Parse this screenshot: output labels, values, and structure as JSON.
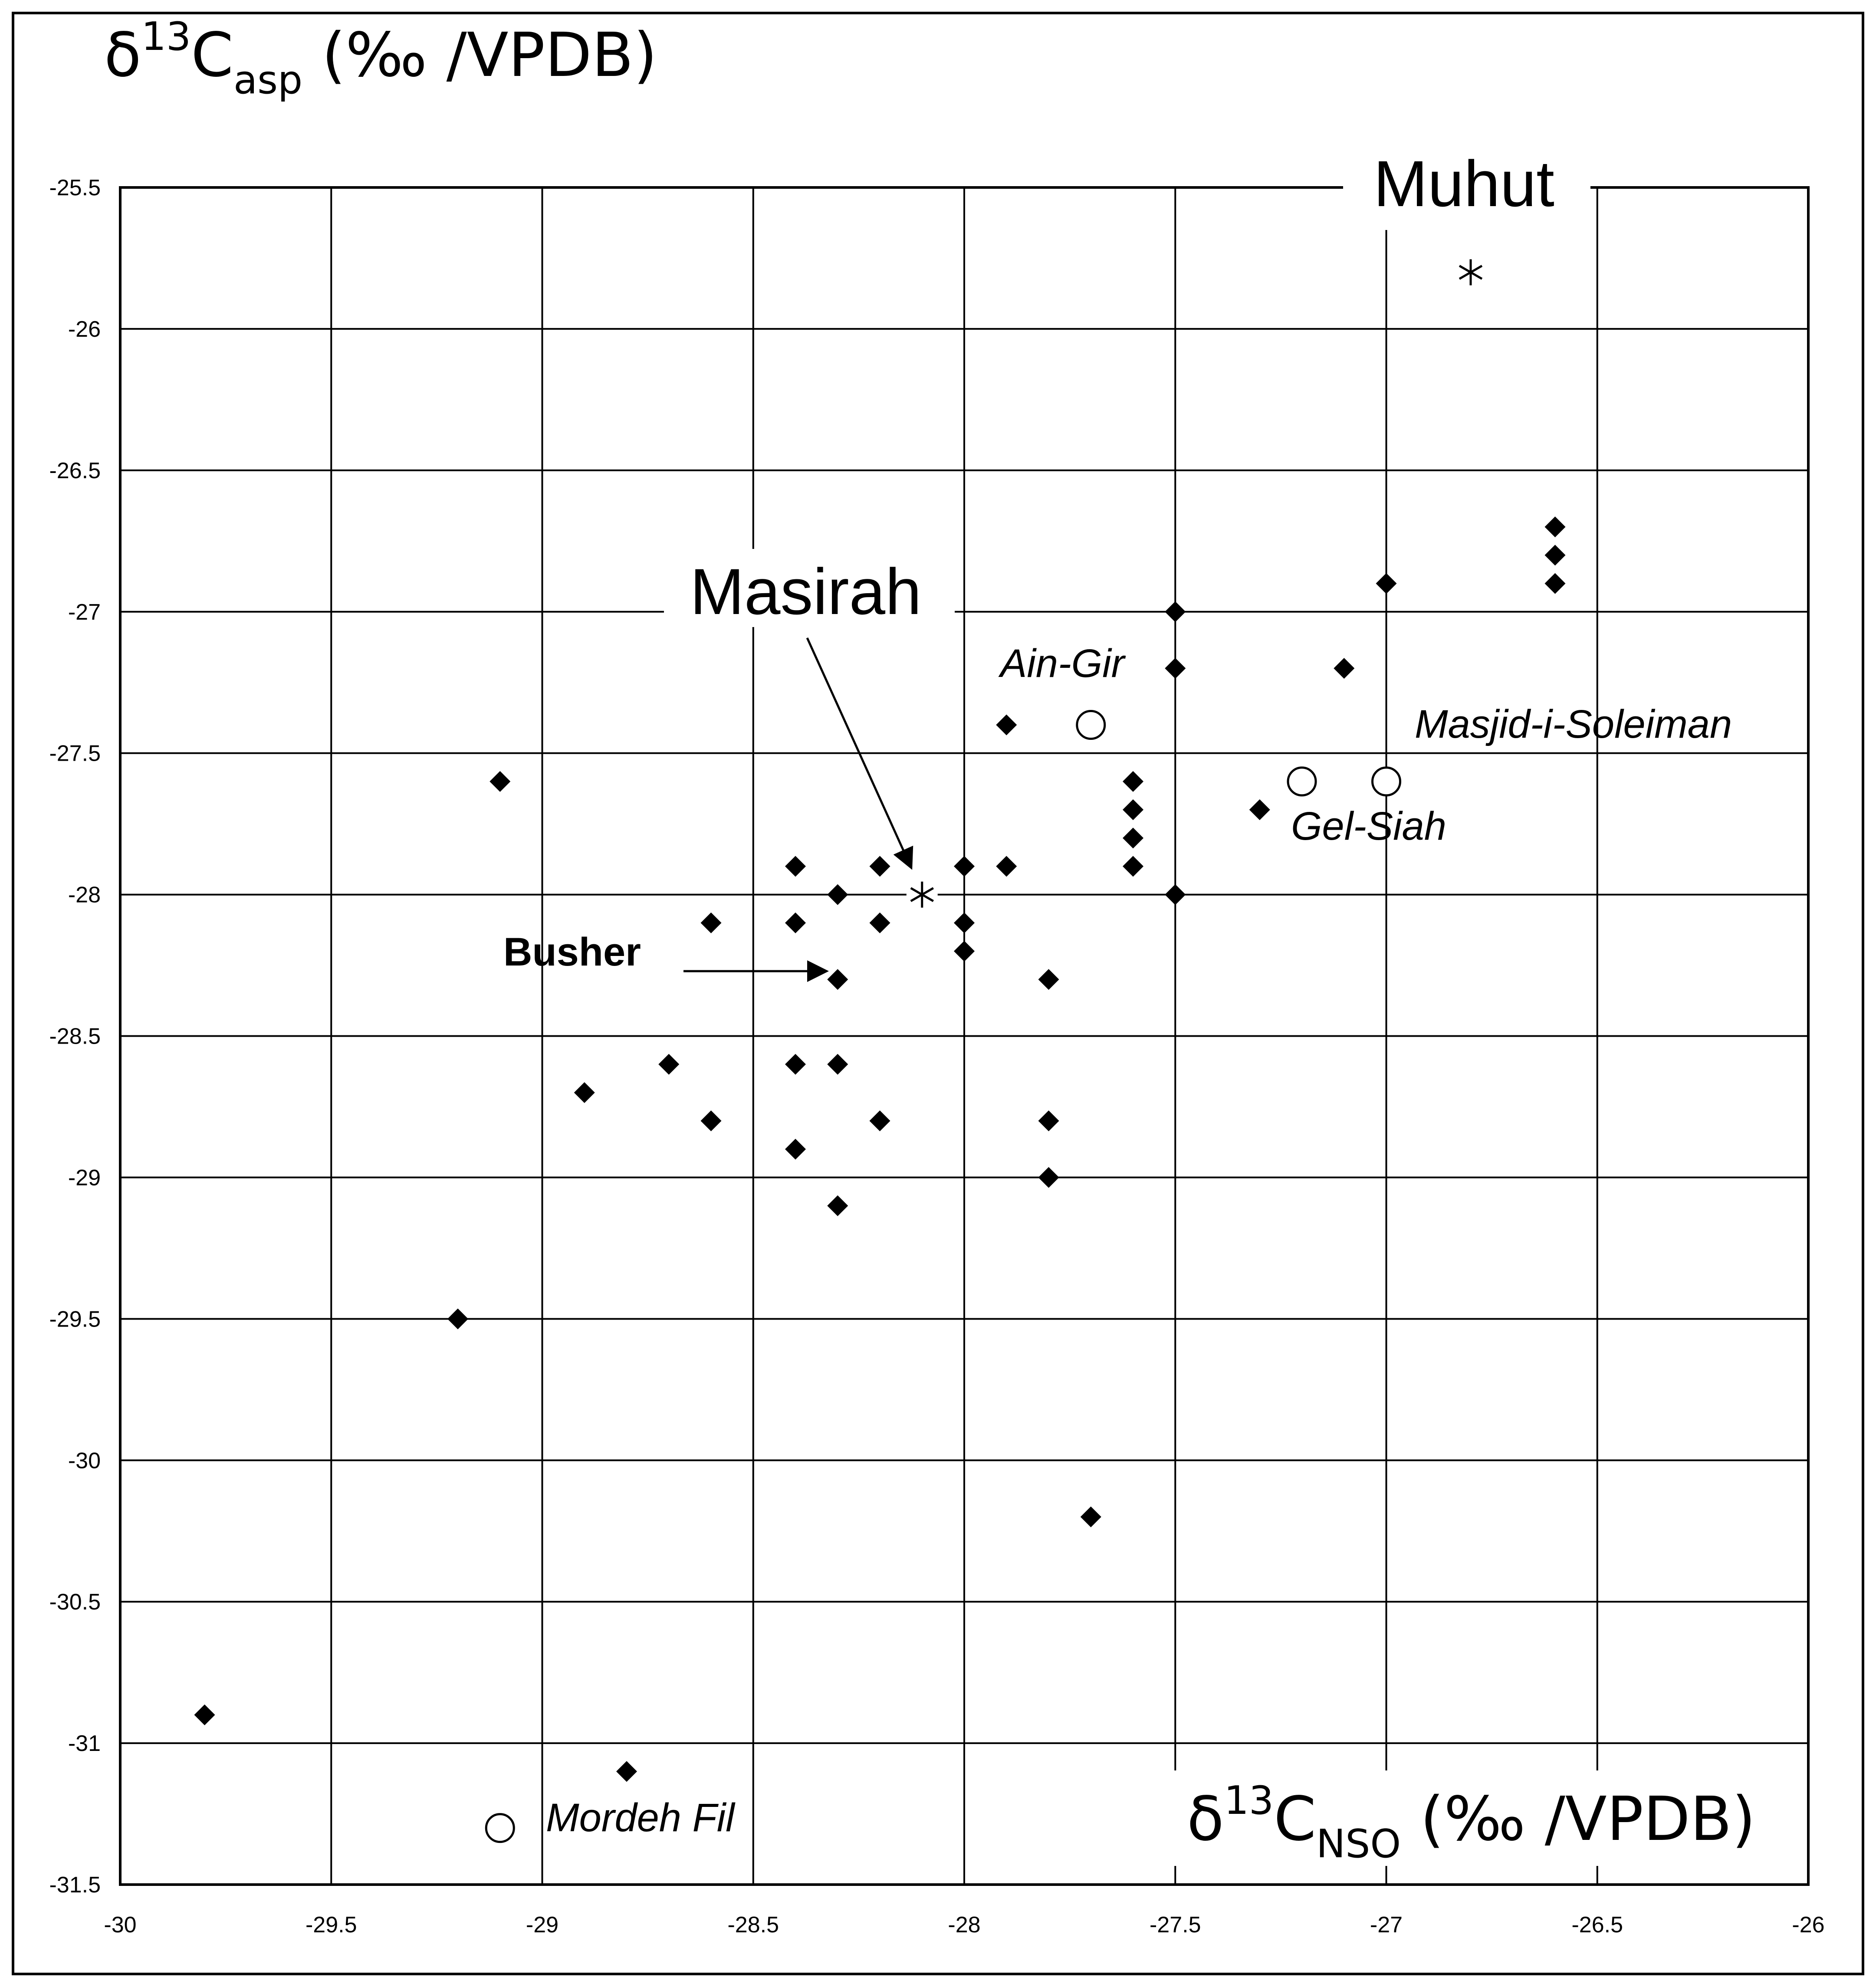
{
  "chart_data": {
    "type": "scatter",
    "ylabel": {
      "main": "δ",
      "sup": "13",
      "c": "C",
      "sub": "asp",
      "unit": " (‰ /VPDB)"
    },
    "xlabel": {
      "main": "δ",
      "sup": "13",
      "c": "C",
      "sub": "NSO",
      "unit": " (‰ /VPDB)"
    },
    "xlim": [
      -30,
      -26
    ],
    "ylim": [
      -31.5,
      -25.5
    ],
    "x_ticks": [
      "-30",
      "-29.5",
      "-29",
      "-28.5",
      "-28",
      "-27.5",
      "-27",
      "-26.5",
      "-26"
    ],
    "y_ticks": [
      "-25.5",
      "-26",
      "-26.5",
      "-27",
      "-27.5",
      "-28",
      "-28.5",
      "-29",
      "-29.5",
      "-30",
      "-30.5",
      "-31",
      "-31.5"
    ],
    "grid": true,
    "series": [
      {
        "marker": "diamond",
        "points": [
          [
            -29.8,
            -30.9
          ],
          [
            -29.2,
            -29.5
          ],
          [
            -29.1,
            -27.6
          ],
          [
            -28.9,
            -28.7
          ],
          [
            -28.8,
            -31.1
          ],
          [
            -28.7,
            -28.6
          ],
          [
            -28.6,
            -28.1
          ],
          [
            -28.6,
            -28.8
          ],
          [
            -28.4,
            -27.9
          ],
          [
            -28.4,
            -28.1
          ],
          [
            -28.4,
            -28.6
          ],
          [
            -28.4,
            -28.9
          ],
          [
            -28.3,
            -28.0
          ],
          [
            -28.3,
            -28.3
          ],
          [
            -28.3,
            -28.6
          ],
          [
            -28.3,
            -29.1
          ],
          [
            -28.2,
            -27.9
          ],
          [
            -28.2,
            -28.1
          ],
          [
            -28.2,
            -28.8
          ],
          [
            -28.0,
            -27.9
          ],
          [
            -28.0,
            -28.1
          ],
          [
            -28.0,
            -28.2
          ],
          [
            -27.9,
            -27.4
          ],
          [
            -27.9,
            -27.9
          ],
          [
            -27.8,
            -28.3
          ],
          [
            -27.8,
            -28.8
          ],
          [
            -27.8,
            -29.0
          ],
          [
            -27.7,
            -30.2
          ],
          [
            -27.6,
            -27.6
          ],
          [
            -27.6,
            -27.7
          ],
          [
            -27.6,
            -27.8
          ],
          [
            -27.6,
            -27.9
          ],
          [
            -27.5,
            -27.0
          ],
          [
            -27.5,
            -27.2
          ],
          [
            -27.5,
            -28.0
          ],
          [
            -27.3,
            -27.7
          ],
          [
            -27.1,
            -27.2
          ],
          [
            -27.0,
            -26.9
          ],
          [
            -26.6,
            -26.7
          ],
          [
            -26.6,
            -26.8
          ],
          [
            -26.6,
            -26.9
          ]
        ]
      },
      {
        "marker": "circle",
        "points": [
          [
            -27.7,
            -27.4
          ],
          [
            -27.2,
            -27.6
          ],
          [
            -27.0,
            -27.6
          ],
          [
            -29.1,
            -31.3
          ]
        ]
      },
      {
        "marker": "asterisk",
        "points": [
          [
            -28.1,
            -28.0
          ],
          [
            -26.8,
            -25.8
          ]
        ]
      }
    ],
    "annotations": {
      "muhut": "Muhut",
      "masirah": "Masirah",
      "busher": "Busher",
      "ain_gir": "Ain-Gir",
      "masjid": "Masjid-i-Soleiman",
      "gel_siah": "Gel-Siah",
      "mordeh": "Mordeh Fil"
    }
  }
}
